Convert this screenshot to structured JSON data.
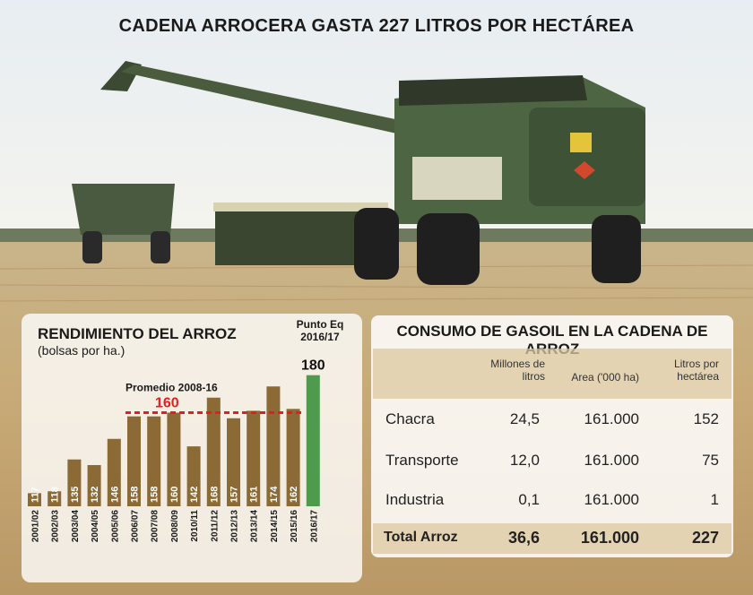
{
  "title": "CADENA ARROCERA GASTA 227 LITROS POR HECTÁREA",
  "chart_data": {
    "type": "bar",
    "title": "RENDIMIENTO DEL ARROZ",
    "subtitle": "(bolsas por ha.)",
    "categories": [
      "2001/02",
      "2002/03",
      "2003/04",
      "2004/05",
      "2005/06",
      "2006/07",
      "2007/08",
      "2008/09",
      "2010/11",
      "2011/12",
      "2012/13",
      "2013/14",
      "2014/15",
      "2015/16",
      "2016/17"
    ],
    "values": [
      117,
      118,
      135,
      132,
      146,
      158,
      158,
      160,
      142,
      168,
      157,
      161,
      174,
      162,
      180
    ],
    "highlight": {
      "category": "2016/17",
      "label": "Punto Eq\n2016/17",
      "value_label": "180",
      "color": "#4e9a4f"
    },
    "average": {
      "label": "Promedio 2008-16",
      "value": 160,
      "color": "#e02020"
    },
    "bar_color": "#8b6a35",
    "ylim": [
      100,
      185
    ]
  },
  "table": {
    "title": "CONSUMO DE GASOIL EN LA CADENA DE ARROZ",
    "headers": [
      "Millones de litros",
      "Area ('000 ha)",
      "Litros por hectárea"
    ],
    "rows": [
      {
        "label": "Chacra",
        "millones": "24,5",
        "area": "161.000",
        "litros": "152"
      },
      {
        "label": "Transporte",
        "millones": "12,0",
        "area": "161.000",
        "litros": "75"
      },
      {
        "label": "Industria",
        "millones": "0,1",
        "area": "161.000",
        "litros": "1"
      }
    ],
    "total": {
      "label": "Total Arroz",
      "millones": "36,6",
      "area": "161.000",
      "litros": "227"
    }
  }
}
